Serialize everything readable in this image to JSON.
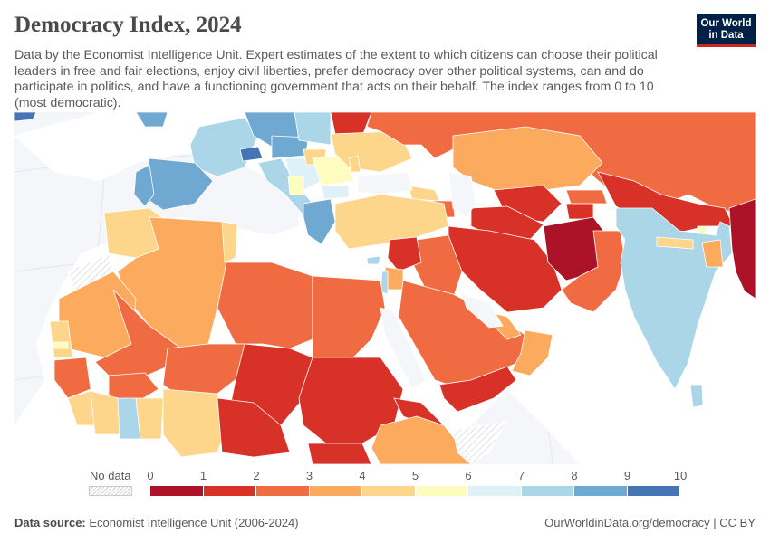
{
  "header": {
    "title": "Democracy Index, 2024",
    "subtitle": "Data by the Economist Intelligence Unit. Expert estimates of the extent to which citizens can choose their political leaders in free and fair elections, enjoy civil liberties, prefer democracy over other political systems, can and do participate in politics, and have a functioning government that acts on their behalf. The index ranges from 0 to 10 (most democratic).",
    "logo_line1": "Our World",
    "logo_line2": "in Data"
  },
  "legend": {
    "nodata_label": "No data",
    "ticks": [
      "0",
      "1",
      "2",
      "3",
      "4",
      "5",
      "6",
      "7",
      "8",
      "9",
      "10"
    ],
    "bins": [
      {
        "from": 0,
        "to": 1,
        "color": "#ac1328"
      },
      {
        "from": 1,
        "to": 2,
        "color": "#d73128"
      },
      {
        "from": 2,
        "to": 3,
        "color": "#f06b42"
      },
      {
        "from": 3,
        "to": 4,
        "color": "#fcaa5d"
      },
      {
        "from": 4,
        "to": 5,
        "color": "#fdd68b"
      },
      {
        "from": 5,
        "to": 6,
        "color": "#fffcc0"
      },
      {
        "from": 6,
        "to": 7,
        "color": "#def1f6"
      },
      {
        "from": 7,
        "to": 8,
        "color": "#abd6e8"
      },
      {
        "from": 8,
        "to": 9,
        "color": "#6fa8d0"
      },
      {
        "from": 9,
        "to": 10,
        "color": "#4575b4"
      }
    ]
  },
  "footer": {
    "source_label": "Data source:",
    "source_text": "Economist Intelligence Unit (2006-2024)",
    "url_text": "OurWorldinData.org/democracy | CC BY"
  },
  "colors": {
    "ocean": "#f4f6f9",
    "nodata_land": "#ffffff",
    "border": "#ffffff"
  }
}
